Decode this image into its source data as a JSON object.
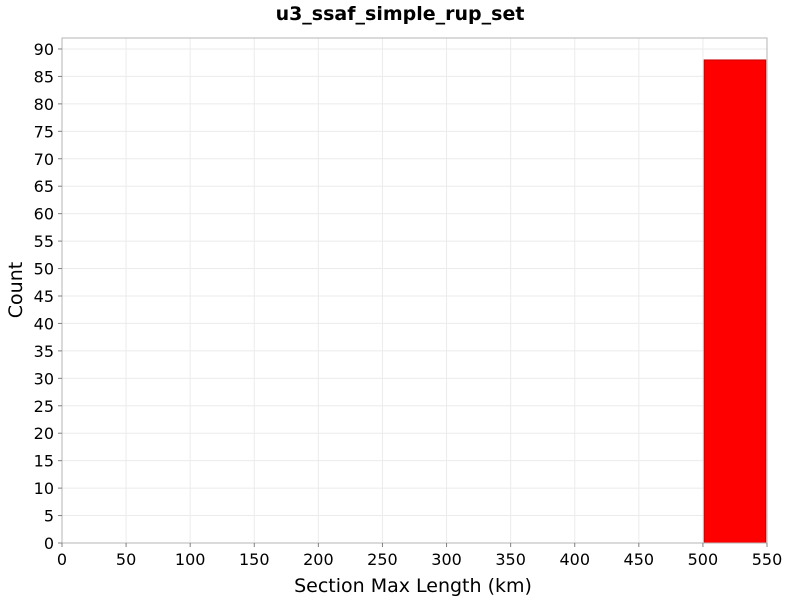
{
  "chart_data": {
    "type": "bar",
    "title": "u3_ssaf_simple_rup_set",
    "xlabel": "Section Max Length (km)",
    "ylabel": "Count",
    "xlim": [
      0,
      550
    ],
    "ylim": [
      0,
      92
    ],
    "x_ticks": [
      0,
      50,
      100,
      150,
      200,
      250,
      300,
      350,
      400,
      450,
      500,
      550
    ],
    "y_ticks": [
      0,
      5,
      10,
      15,
      20,
      25,
      30,
      35,
      40,
      45,
      50,
      55,
      60,
      65,
      70,
      75,
      80,
      85,
      90
    ],
    "bins": [
      {
        "x0": 501,
        "x1": 549,
        "value": 88
      }
    ],
    "bar_color": "#ff0000",
    "grid": true
  }
}
